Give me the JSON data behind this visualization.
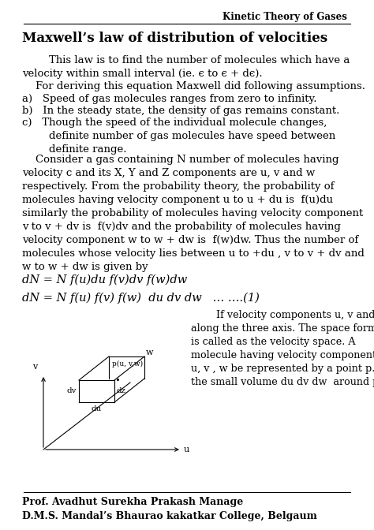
{
  "header_right": "Kinetic Theory of Gases",
  "title": "Maxwell’s law of distribution of velocities",
  "bg_color": "#ffffff",
  "text_color": "#000000",
  "footer_line1": "Prof. Avadhut Surekha Prakash Manage",
  "footer_line2": "D.M.S. Mandal’s Bhaurao kakatkar College, Belgaum"
}
